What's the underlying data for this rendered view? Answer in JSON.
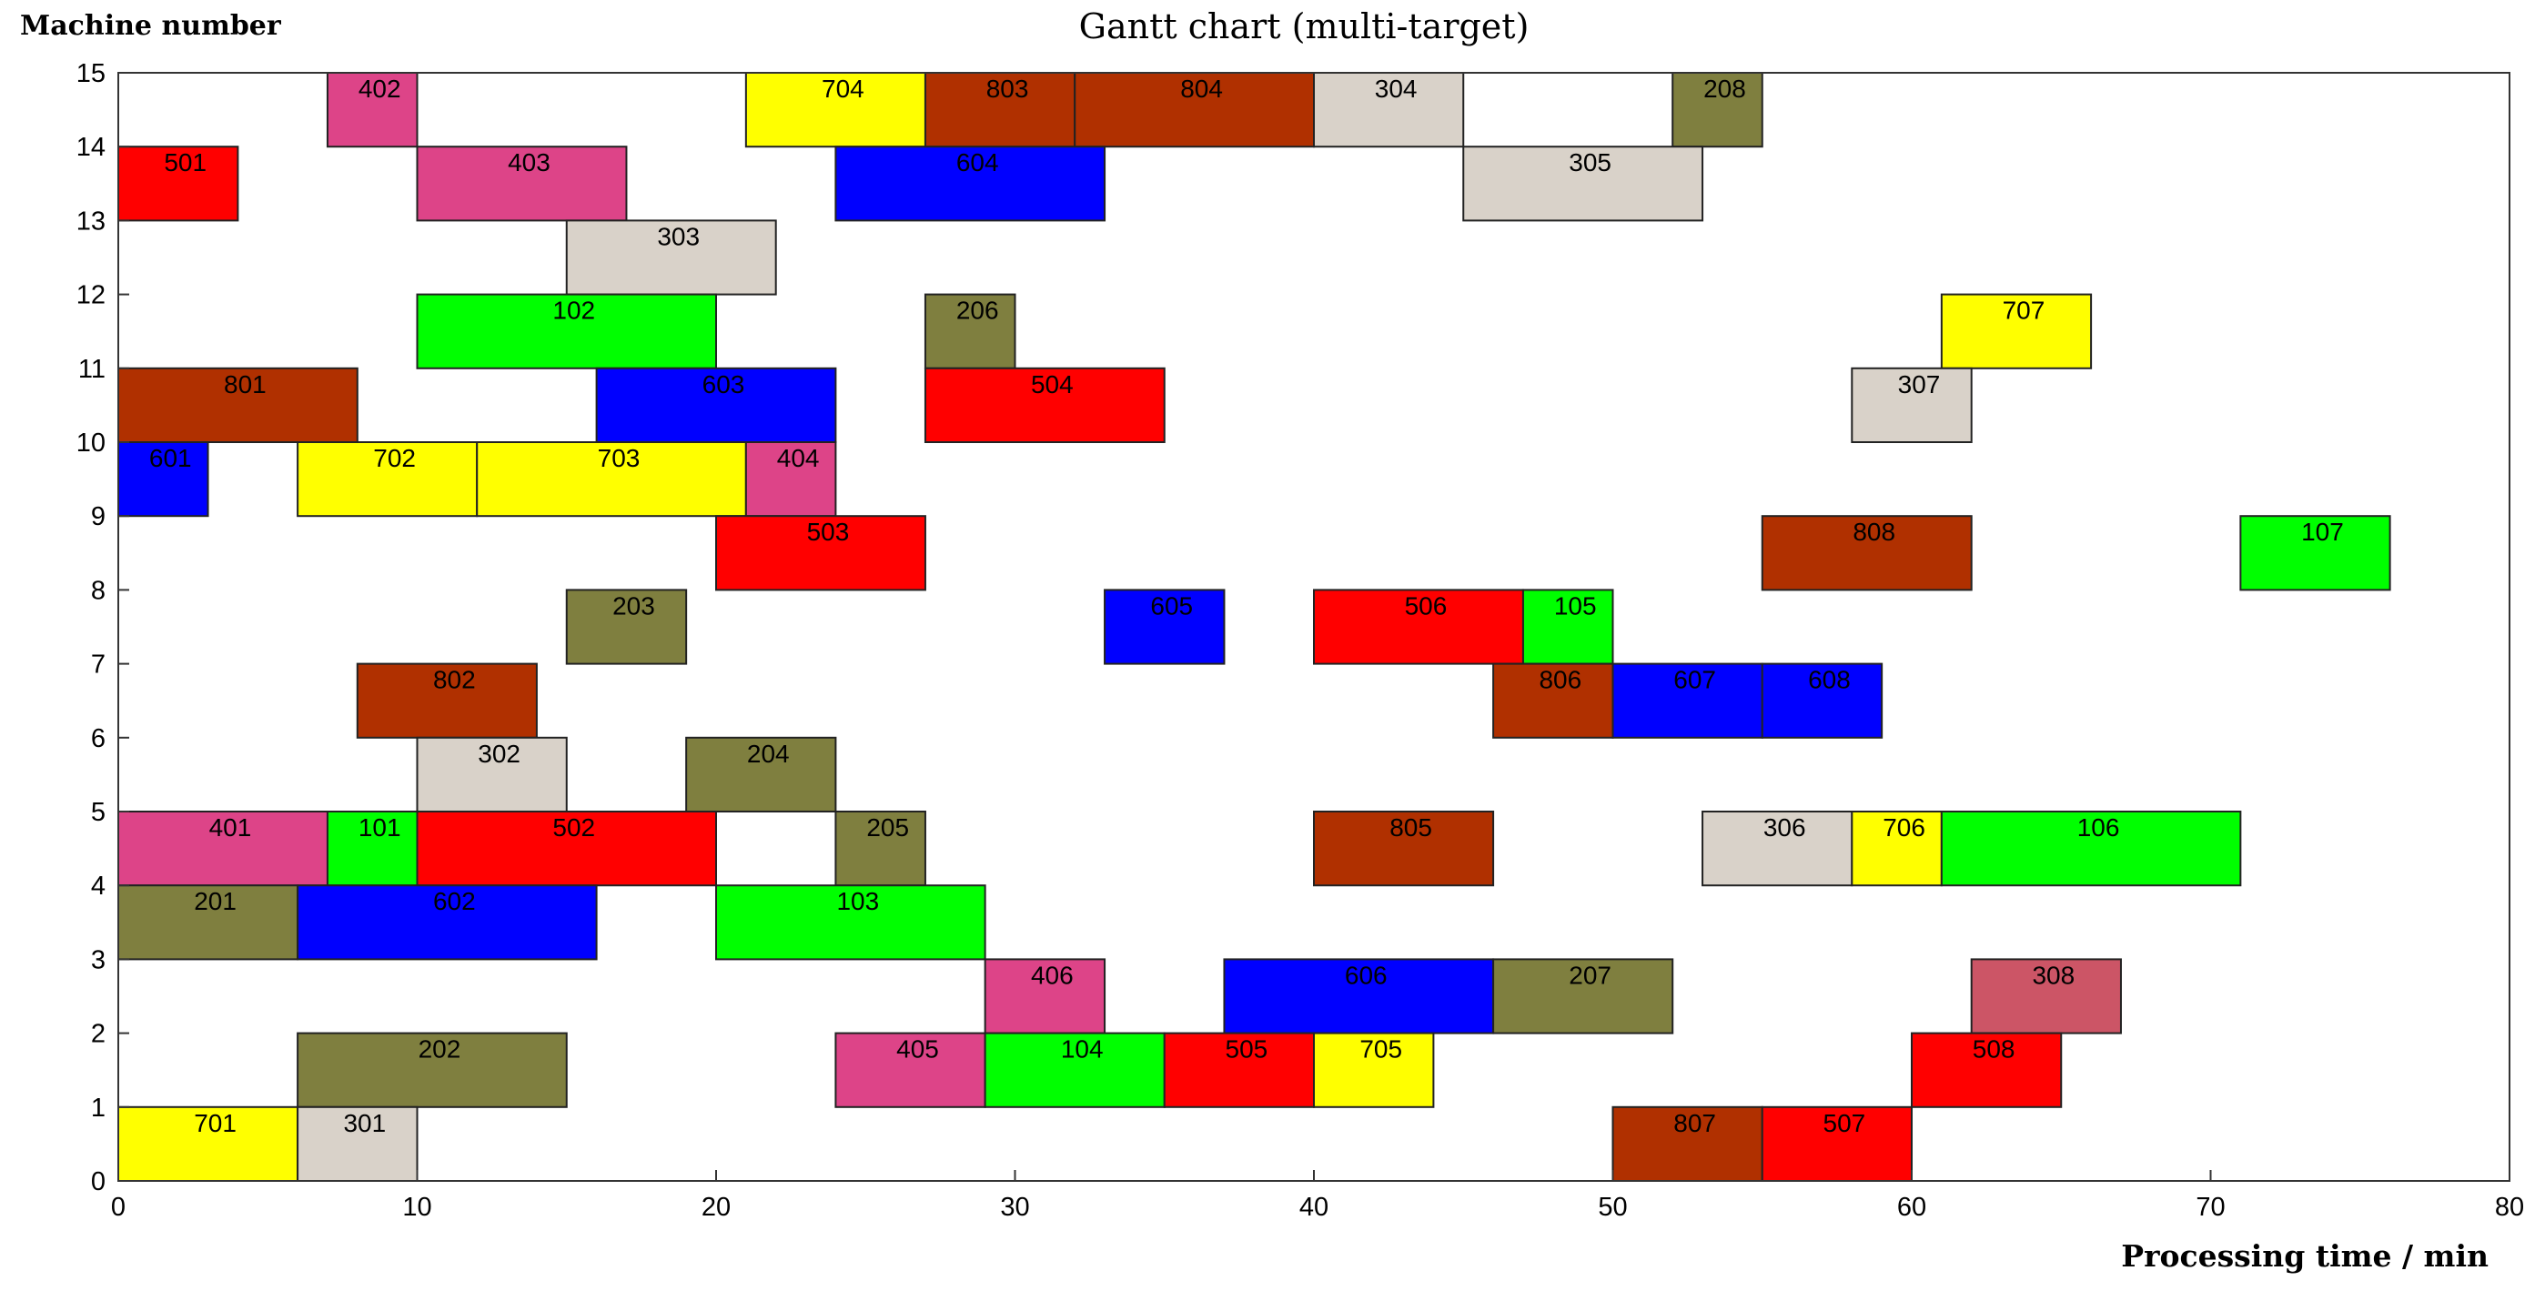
{
  "chart_data": {
    "type": "gantt",
    "title": "Gantt chart (multi-target)",
    "xlabel": "Processing time / min",
    "ylabel": "Machine number",
    "xlim": [
      0,
      80
    ],
    "ylim": [
      0,
      15
    ],
    "xticks": [
      "0",
      "10",
      "20",
      "30",
      "40",
      "50",
      "60",
      "70",
      "80"
    ],
    "yticks": [
      "0",
      "1",
      "2",
      "3",
      "4",
      "5",
      "6",
      "7",
      "8",
      "9",
      "10",
      "11",
      "12",
      "13",
      "14",
      "15"
    ],
    "grid": false,
    "colors": {
      "1": "#00ff00",
      "2": "#7f7f3f",
      "3": "#d9d2c9",
      "4": "#dd4488",
      "5": "#ff0000",
      "6": "#0000ff",
      "7": "#ffff00",
      "8": "#b03000",
      "308": "#cc5566"
    },
    "tasks": [
      {
        "label": "402",
        "start": 7,
        "end": 10,
        "row": 14
      },
      {
        "label": "704",
        "start": 21,
        "end": 27,
        "row": 14
      },
      {
        "label": "803",
        "start": 27,
        "end": 32,
        "row": 14
      },
      {
        "label": "804",
        "start": 32,
        "end": 40,
        "row": 14
      },
      {
        "label": "304",
        "start": 40,
        "end": 45,
        "row": 14
      },
      {
        "label": "208",
        "start": 52,
        "end": 55,
        "row": 14
      },
      {
        "label": "501",
        "start": 0,
        "end": 4,
        "row": 13
      },
      {
        "label": "403",
        "start": 10,
        "end": 17,
        "row": 13
      },
      {
        "label": "604",
        "start": 24,
        "end": 33,
        "row": 13
      },
      {
        "label": "305",
        "start": 45,
        "end": 53,
        "row": 13
      },
      {
        "label": "303",
        "start": 15,
        "end": 22,
        "row": 12
      },
      {
        "label": "102",
        "start": 10,
        "end": 20,
        "row": 11
      },
      {
        "label": "206",
        "start": 27,
        "end": 30,
        "row": 11
      },
      {
        "label": "707",
        "start": 61,
        "end": 66,
        "row": 11
      },
      {
        "label": "801",
        "start": 0,
        "end": 8,
        "row": 10
      },
      {
        "label": "603",
        "start": 16,
        "end": 24,
        "row": 10
      },
      {
        "label": "504",
        "start": 27,
        "end": 35,
        "row": 10
      },
      {
        "label": "307",
        "start": 58,
        "end": 62,
        "row": 10
      },
      {
        "label": "601",
        "start": 0,
        "end": 3,
        "row": 9
      },
      {
        "label": "702",
        "start": 6,
        "end": 12,
        "row": 9
      },
      {
        "label": "703",
        "start": 12,
        "end": 21,
        "row": 9
      },
      {
        "label": "404",
        "start": 21,
        "end": 24,
        "row": 9
      },
      {
        "label": "503",
        "start": 20,
        "end": 27,
        "row": 8
      },
      {
        "label": "808",
        "start": 55,
        "end": 62,
        "row": 8
      },
      {
        "label": "107",
        "start": 71,
        "end": 76,
        "row": 8
      },
      {
        "label": "203",
        "start": 15,
        "end": 19,
        "row": 7
      },
      {
        "label": "605",
        "start": 33,
        "end": 37,
        "row": 7
      },
      {
        "label": "506",
        "start": 40,
        "end": 47,
        "row": 7
      },
      {
        "label": "105",
        "start": 47,
        "end": 50,
        "row": 7
      },
      {
        "label": "802",
        "start": 8,
        "end": 14,
        "row": 6
      },
      {
        "label": "806",
        "start": 46,
        "end": 50,
        "row": 6
      },
      {
        "label": "607",
        "start": 50,
        "end": 55,
        "row": 6
      },
      {
        "label": "608",
        "start": 55,
        "end": 59,
        "row": 6
      },
      {
        "label": "302",
        "start": 10,
        "end": 15,
        "row": 5
      },
      {
        "label": "204",
        "start": 19,
        "end": 24,
        "row": 5
      },
      {
        "label": "401",
        "start": 0,
        "end": 7,
        "row": 4
      },
      {
        "label": "101",
        "start": 7,
        "end": 10,
        "row": 4
      },
      {
        "label": "502",
        "start": 10,
        "end": 20,
        "row": 4
      },
      {
        "label": "205",
        "start": 24,
        "end": 27,
        "row": 4
      },
      {
        "label": "805",
        "start": 40,
        "end": 46,
        "row": 4
      },
      {
        "label": "306",
        "start": 53,
        "end": 58,
        "row": 4
      },
      {
        "label": "706",
        "start": 58,
        "end": 61,
        "row": 4
      },
      {
        "label": "106",
        "start": 61,
        "end": 71,
        "row": 4
      },
      {
        "label": "201",
        "start": 0,
        "end": 6,
        "row": 3
      },
      {
        "label": "602",
        "start": 6,
        "end": 16,
        "row": 3
      },
      {
        "label": "103",
        "start": 20,
        "end": 29,
        "row": 3
      },
      {
        "label": "406",
        "start": 29,
        "end": 33,
        "row": 2
      },
      {
        "label": "606",
        "start": 37,
        "end": 46,
        "row": 2
      },
      {
        "label": "207",
        "start": 46,
        "end": 52,
        "row": 2
      },
      {
        "label": "308",
        "start": 62,
        "end": 67,
        "row": 2
      },
      {
        "label": "202",
        "start": 6,
        "end": 15,
        "row": 1
      },
      {
        "label": "405",
        "start": 24,
        "end": 29,
        "row": 1
      },
      {
        "label": "104",
        "start": 29,
        "end": 35,
        "row": 1
      },
      {
        "label": "505",
        "start": 35,
        "end": 40,
        "row": 1
      },
      {
        "label": "705",
        "start": 40,
        "end": 44,
        "row": 1
      },
      {
        "label": "508",
        "start": 60,
        "end": 65,
        "row": 1
      },
      {
        "label": "701",
        "start": 0,
        "end": 6,
        "row": 0
      },
      {
        "label": "301",
        "start": 6,
        "end": 10,
        "row": 0
      },
      {
        "label": "807",
        "start": 50,
        "end": 55,
        "row": 0
      },
      {
        "label": "507",
        "start": 55,
        "end": 60,
        "row": 0
      }
    ]
  }
}
